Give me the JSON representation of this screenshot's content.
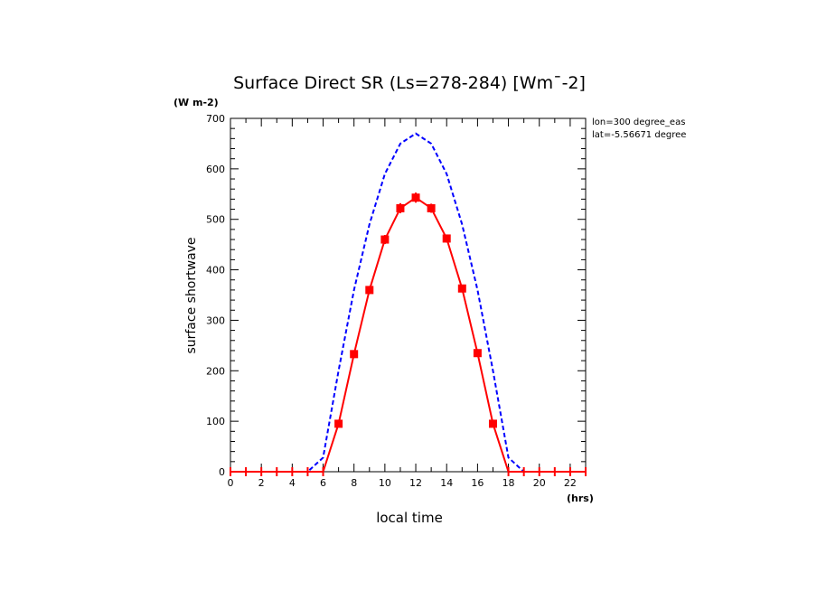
{
  "chart_data": {
    "type": "line",
    "title": "Surface Direct SR (Ls=278-284) [Wm¯-2]",
    "ylabel": "surface shortwave",
    "xlabel": "local time",
    "y_unit": "(W m-2)",
    "x_unit": "(hrs)",
    "annotations": [
      "lon=300 degree_eas",
      "lat=-5.56671 degree"
    ],
    "xlim": [
      0,
      23
    ],
    "ylim": [
      0,
      700
    ],
    "x_ticks": [
      0,
      2,
      4,
      6,
      8,
      10,
      12,
      14,
      16,
      18,
      20,
      22
    ],
    "y_ticks": [
      0,
      100,
      200,
      300,
      400,
      500,
      600,
      700
    ],
    "grid": false,
    "series": [
      {
        "style": "dashed",
        "color": "#0000ff",
        "x": [
          0,
          1,
          2,
          3,
          4,
          5,
          6,
          7,
          8,
          9,
          10,
          11,
          12,
          13,
          14,
          15,
          16,
          17,
          18,
          19,
          20,
          21,
          22,
          23
        ],
        "values": [
          0,
          0,
          0,
          0,
          0,
          0,
          28,
          200,
          360,
          490,
          590,
          650,
          670,
          650,
          590,
          490,
          360,
          200,
          28,
          0,
          0,
          0,
          0,
          0
        ]
      },
      {
        "style": "solid-markers",
        "color": "#ff0000",
        "x": [
          0,
          1,
          2,
          3,
          4,
          5,
          6,
          7,
          8,
          9,
          10,
          11,
          12,
          13,
          14,
          15,
          16,
          17,
          18,
          19,
          20,
          21,
          22,
          23
        ],
        "values": [
          0,
          0,
          0,
          0,
          0,
          0,
          0,
          95,
          233,
          360,
          460,
          522,
          543,
          522,
          462,
          363,
          235,
          95,
          0,
          0,
          0,
          0,
          0,
          0
        ],
        "error": [
          0,
          0,
          0,
          0,
          0,
          0,
          0,
          5,
          6,
          8,
          9,
          10,
          10,
          9,
          8,
          7,
          6,
          5,
          0,
          0,
          0,
          0,
          0,
          0
        ]
      }
    ]
  }
}
